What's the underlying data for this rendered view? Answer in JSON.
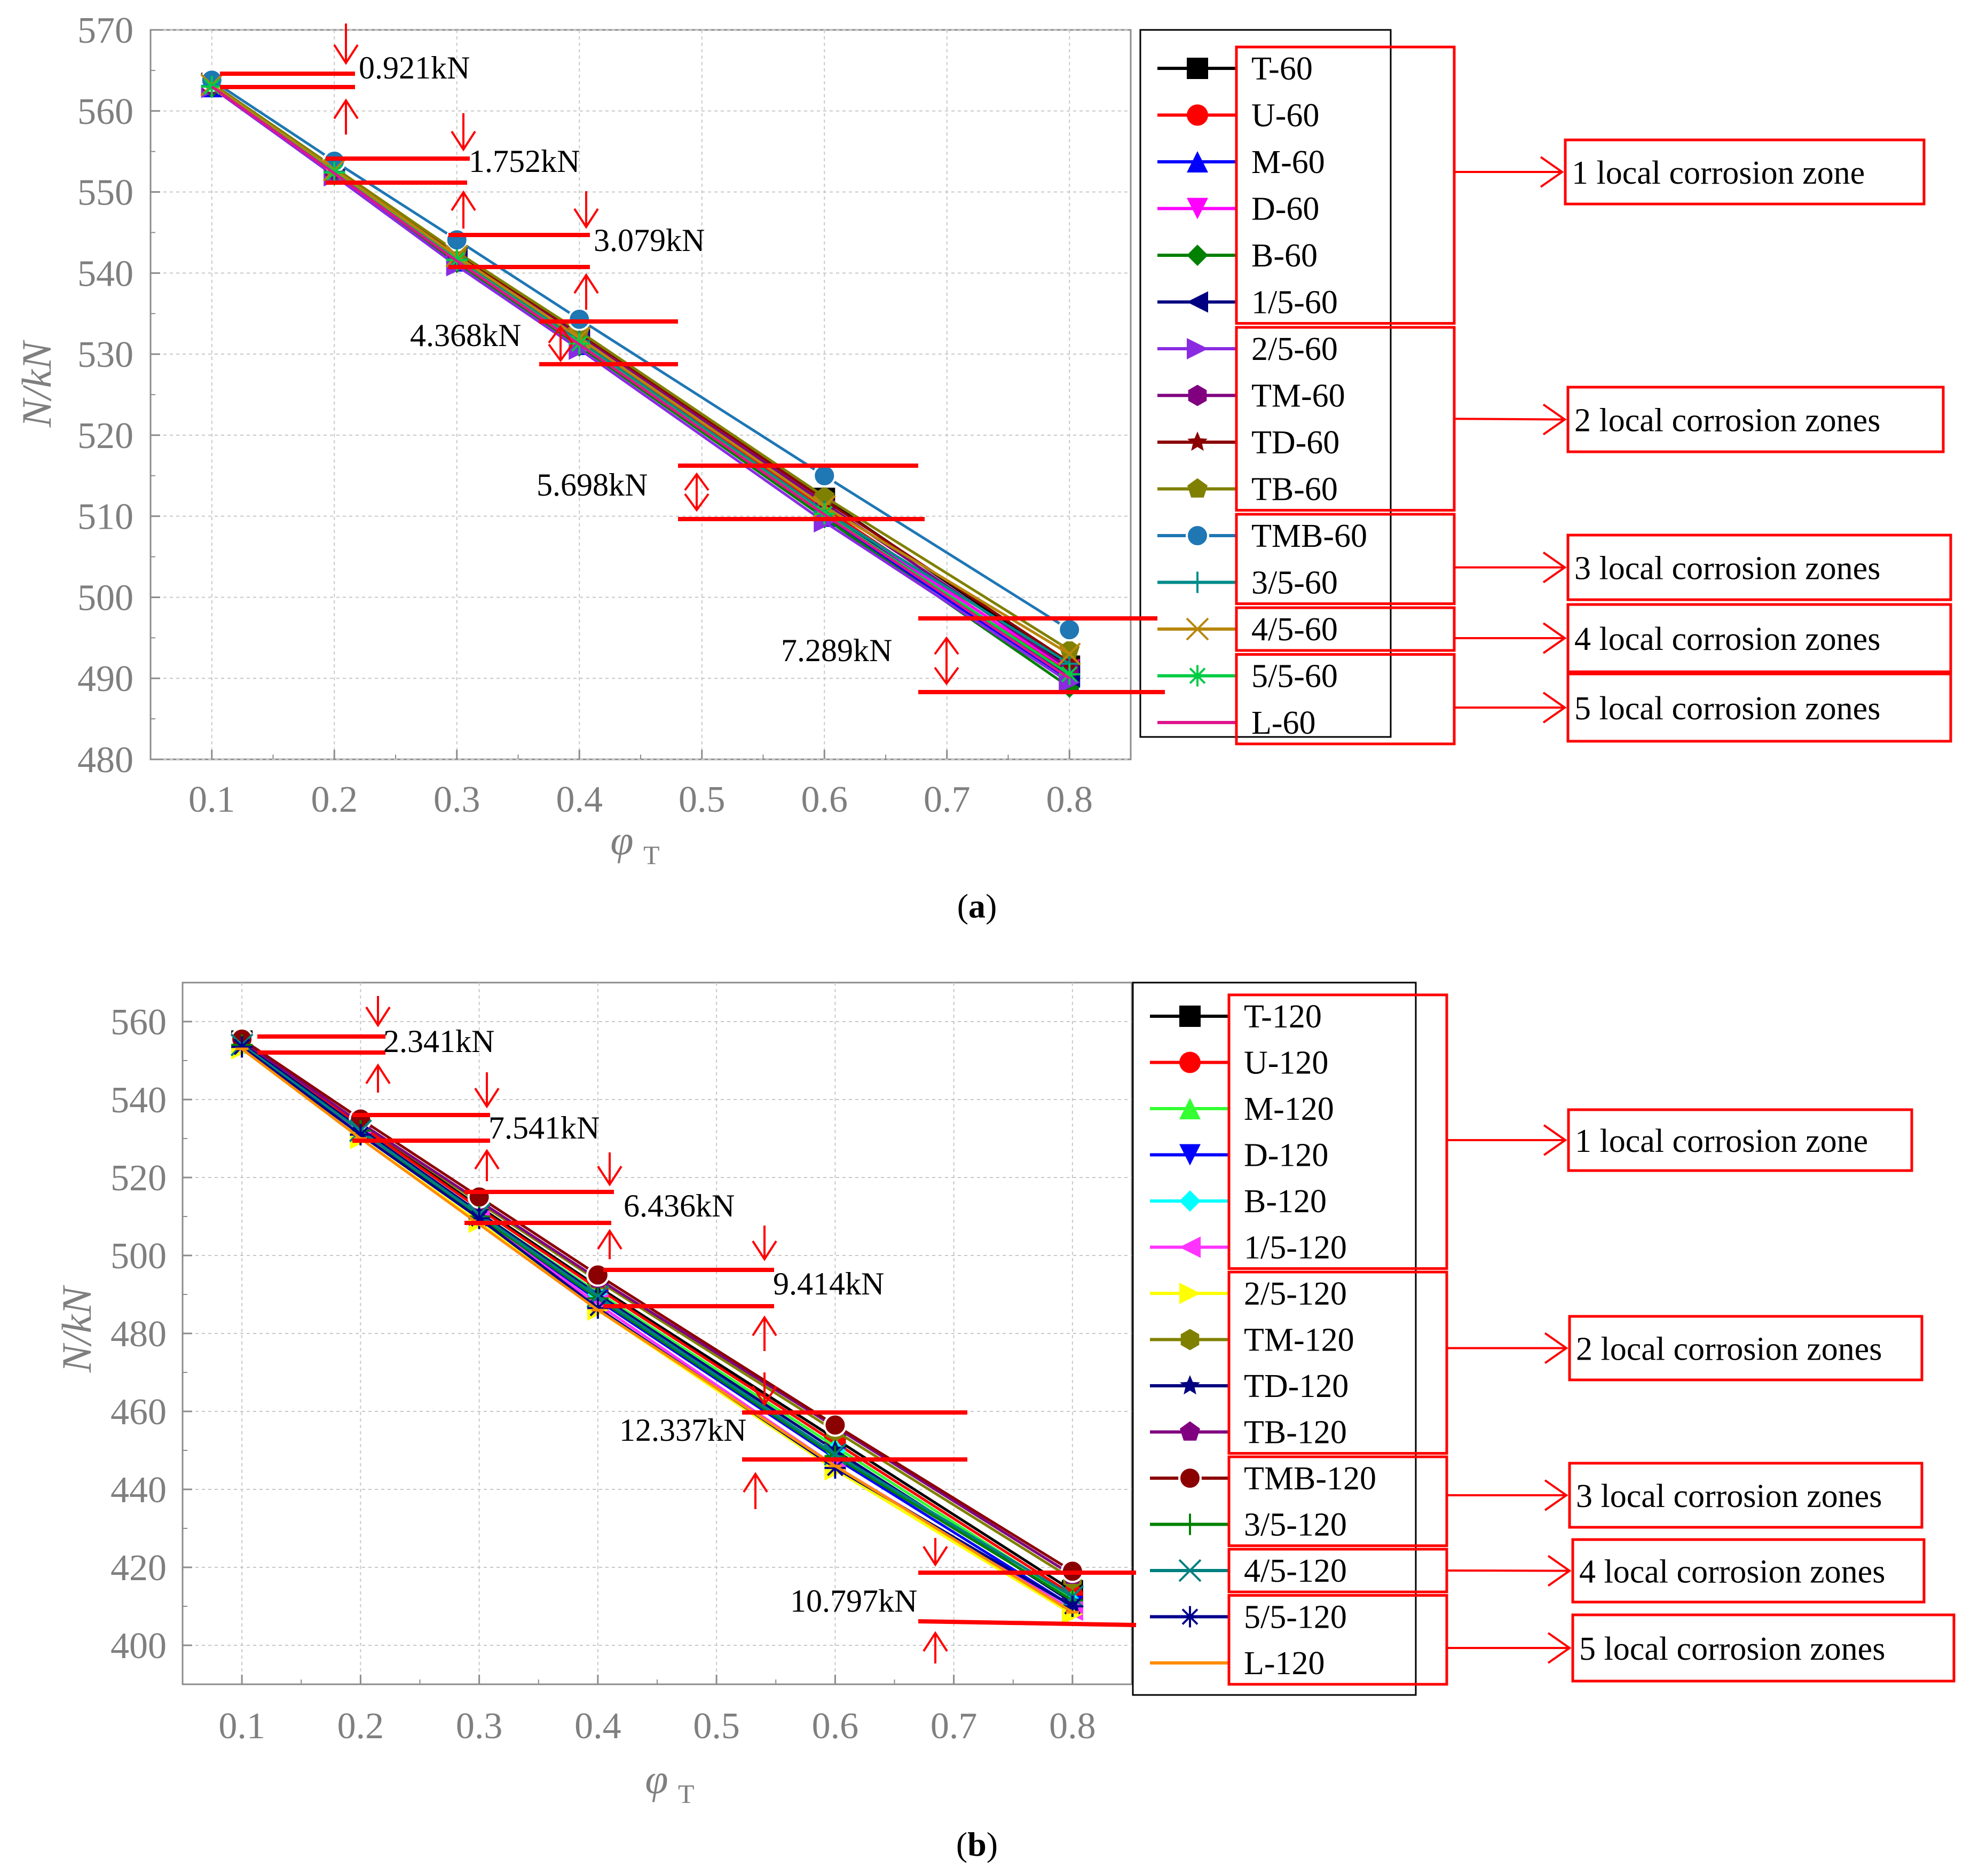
{
  "chart_data": [
    {
      "type": "line",
      "caption_letter": "a",
      "xlabel": "φ",
      "xlabel_sub": "T",
      "ylabel": "N/kN",
      "xlim": [
        0.05,
        0.85
      ],
      "ylim": [
        480,
        570
      ],
      "x_ticks": [
        "0.1",
        "0.2",
        "0.3",
        "0.4",
        "0.5",
        "0.6",
        "0.7",
        "0.8"
      ],
      "y_ticks": [
        "480",
        "490",
        "500",
        "510",
        "520",
        "530",
        "540",
        "550",
        "560",
        "570"
      ],
      "x": [
        0.1,
        0.2,
        0.3,
        0.4,
        0.6,
        0.8
      ],
      "series": [
        {
          "name": "T-60",
          "color": "#000000",
          "marker": "square",
          "values": [
            563.4,
            553.0,
            542.5,
            532.6,
            512.2,
            491.5
          ]
        },
        {
          "name": "U-60",
          "color": "#ff0000",
          "marker": "circle",
          "values": [
            563.2,
            552.6,
            542.0,
            532.0,
            511.0,
            490.8
          ]
        },
        {
          "name": "M-60",
          "color": "#0000ff",
          "marker": "triangle-up",
          "values": [
            563.0,
            552.3,
            541.5,
            531.2,
            510.0,
            489.6
          ]
        },
        {
          "name": "D-60",
          "color": "#ff00ff",
          "marker": "triangle-down",
          "values": [
            563.0,
            552.3,
            541.6,
            531.5,
            510.6,
            491.0
          ]
        },
        {
          "name": "B-60",
          "color": "#008000",
          "marker": "diamond",
          "values": [
            562.9,
            552.1,
            541.3,
            531.0,
            509.8,
            488.9
          ]
        },
        {
          "name": "1/5-60",
          "color": "#000080",
          "marker": "triangle-left",
          "values": [
            563.1,
            552.5,
            541.8,
            531.6,
            510.5,
            490.2
          ]
        },
        {
          "name": "2/5-60",
          "color": "#8a2be2",
          "marker": "triangle-right",
          "values": [
            562.9,
            552.0,
            540.9,
            530.6,
            509.3,
            489.5
          ]
        },
        {
          "name": "TM-60",
          "color": "#800080",
          "marker": "hexagon",
          "values": [
            563.2,
            552.7,
            542.2,
            532.2,
            511.6,
            491.2
          ]
        },
        {
          "name": "TD-60",
          "color": "#8b0000",
          "marker": "star",
          "values": [
            563.3,
            552.8,
            542.4,
            532.6,
            512.0,
            492.0
          ]
        },
        {
          "name": "TB-60",
          "color": "#808000",
          "marker": "pentagon",
          "values": [
            563.4,
            553.0,
            542.6,
            532.8,
            512.4,
            493.5
          ]
        },
        {
          "name": "TMB-60",
          "color": "#1f77b4",
          "marker": "ball",
          "values": [
            563.8,
            553.8,
            544.1,
            534.3,
            515.0,
            496.0
          ]
        },
        {
          "name": "3/5-60",
          "color": "#008b8b",
          "marker": "plus",
          "values": [
            563.1,
            552.5,
            541.7,
            531.6,
            510.6,
            491.8
          ]
        },
        {
          "name": "4/5-60",
          "color": "#b8860b",
          "marker": "x",
          "values": [
            563.2,
            552.7,
            542.1,
            532.0,
            511.2,
            493.0
          ]
        },
        {
          "name": "5/5-60",
          "color": "#00cc44",
          "marker": "asterisk",
          "values": [
            563.0,
            552.4,
            541.6,
            531.3,
            510.3,
            490.5
          ]
        },
        {
          "name": "L-60",
          "color": "#e0148c",
          "marker": "none",
          "values": [
            563.0,
            552.3,
            541.5,
            531.2,
            510.2,
            490.0
          ]
        }
      ],
      "annotations": [
        "0.921kN",
        "1.752kN",
        "3.079kN",
        "4.368kN",
        "5.698kN",
        "7.289kN"
      ],
      "zones": [
        "1 local corrosion zone",
        "2 local corrosion zones",
        "3 local corrosion zones",
        "4 local corrosion zones",
        "5 local corrosion zones"
      ]
    },
    {
      "type": "line",
      "caption_letter": "b",
      "xlabel": "φ",
      "xlabel_sub": "T",
      "ylabel": "N/kN",
      "xlim": [
        0.05,
        0.85
      ],
      "ylim": [
        390,
        570
      ],
      "x_ticks": [
        "0.1",
        "0.2",
        "0.3",
        "0.4",
        "0.5",
        "0.6",
        "0.7",
        "0.8"
      ],
      "y_ticks": [
        "400",
        "420",
        "440",
        "460",
        "480",
        "500",
        "520",
        "540",
        "560"
      ],
      "x": [
        0.1,
        0.2,
        0.3,
        0.4,
        0.6,
        0.8
      ],
      "series": [
        {
          "name": "T-120",
          "color": "#000000",
          "marker": "square",
          "values": [
            555.0,
            533.5,
            512.5,
            492.0,
            453.0,
            414.0
          ]
        },
        {
          "name": "U-120",
          "color": "#ff0000",
          "marker": "circle",
          "values": [
            555.0,
            533.3,
            512.0,
            491.5,
            452.0,
            413.0
          ]
        },
        {
          "name": "M-120",
          "color": "#33ff33",
          "marker": "triangle-up",
          "values": [
            554.5,
            532.5,
            511.0,
            490.5,
            451.0,
            412.0
          ]
        },
        {
          "name": "D-120",
          "color": "#0000ff",
          "marker": "triangle-down",
          "values": [
            554.0,
            532.0,
            510.0,
            488.5,
            448.0,
            410.0
          ]
        },
        {
          "name": "B-120",
          "color": "#00ffff",
          "marker": "diamond",
          "values": [
            554.5,
            532.5,
            511.0,
            490.0,
            450.0,
            411.0
          ]
        },
        {
          "name": "1/5-120",
          "color": "#ff33ff",
          "marker": "triangle-left",
          "values": [
            554.0,
            531.5,
            509.5,
            487.5,
            446.0,
            409.0
          ]
        },
        {
          "name": "2/5-120",
          "color": "#ffff00",
          "marker": "triangle-right",
          "values": [
            553.0,
            530.0,
            508.5,
            486.0,
            445.0,
            408.0
          ]
        },
        {
          "name": "TM-120",
          "color": "#808000",
          "marker": "hexagon",
          "values": [
            555.0,
            534.0,
            513.5,
            493.5,
            455.0,
            417.0
          ]
        },
        {
          "name": "TD-120",
          "color": "#000080",
          "marker": "star",
          "values": [
            554.5,
            532.5,
            511.0,
            490.0,
            450.0,
            411.0
          ]
        },
        {
          "name": "TB-120",
          "color": "#800080",
          "marker": "pentagon",
          "values": [
            555.0,
            534.0,
            514.0,
            494.0,
            456.0,
            418.0
          ]
        },
        {
          "name": "TMB-120",
          "color": "#8b0000",
          "marker": "ball",
          "values": [
            555.5,
            535.0,
            515.0,
            495.0,
            456.5,
            419.0
          ]
        },
        {
          "name": "3/5-120",
          "color": "#008000",
          "marker": "plus",
          "values": [
            554.0,
            532.0,
            510.0,
            489.0,
            448.5,
            411.5
          ]
        },
        {
          "name": "4/5-120",
          "color": "#008080",
          "marker": "x",
          "values": [
            554.0,
            532.0,
            510.5,
            489.5,
            449.0,
            412.5
          ]
        },
        {
          "name": "5/5-120",
          "color": "#00008b",
          "marker": "asterisk",
          "values": [
            553.5,
            531.0,
            509.5,
            486.5,
            445.5,
            410.0
          ]
        },
        {
          "name": "L-120",
          "color": "#ff8c00",
          "marker": "dash",
          "values": [
            553.0,
            530.0,
            508.0,
            486.0,
            446.0,
            408.5
          ]
        }
      ],
      "annotations": [
        "2.341kN",
        "7.541kN",
        "6.436kN",
        "9.414kN",
        "12.337kN",
        "10.797kN"
      ],
      "zones": [
        "1 local corrosion zone",
        "2 local corrosion zones",
        "3 local corrosion zones",
        "4 local corrosion zones",
        "5 local corrosion zones"
      ]
    }
  ]
}
